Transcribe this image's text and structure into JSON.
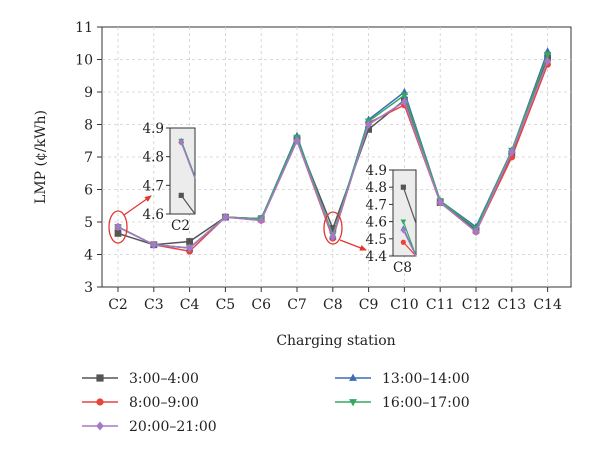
{
  "chart_data": {
    "type": "line",
    "xlabel": "Charging station",
    "ylabel": "LMP (¢/kWh)",
    "ylim": [
      3,
      11
    ],
    "yticks": [
      3,
      4,
      5,
      6,
      7,
      8,
      9,
      10,
      11
    ],
    "grid": true,
    "legend_position": "bottom",
    "categories": [
      "C2",
      "C3",
      "C4",
      "C5",
      "C6",
      "C7",
      "C8",
      "C9",
      "C10",
      "C11",
      "C12",
      "C13",
      "C14"
    ],
    "series": [
      {
        "name": "3:00–4:00",
        "color": "#555555",
        "marker": "square",
        "values": [
          4.65,
          4.3,
          4.4,
          5.15,
          5.1,
          7.55,
          4.8,
          7.85,
          8.75,
          5.6,
          4.75,
          7.1,
          10.05
        ]
      },
      {
        "name": "8:00–9:00",
        "color": "#e8443a",
        "marker": "circle",
        "values": [
          4.85,
          4.3,
          4.1,
          5.15,
          5.05,
          7.5,
          4.5,
          8.05,
          8.6,
          5.6,
          4.7,
          7.0,
          9.85
        ]
      },
      {
        "name": "13:00–14:00",
        "color": "#3d6cb5",
        "marker": "triangle-up",
        "values": [
          4.85,
          4.3,
          4.2,
          5.15,
          5.1,
          7.65,
          4.55,
          8.15,
          9.0,
          5.65,
          4.85,
          7.2,
          10.25
        ]
      },
      {
        "name": "16:00–17:00",
        "color": "#33a861",
        "marker": "triangle-down",
        "values": [
          4.85,
          4.3,
          4.2,
          5.15,
          5.1,
          7.6,
          4.6,
          8.1,
          8.9,
          5.65,
          4.8,
          7.2,
          10.15
        ]
      },
      {
        "name": "20:00–21:00",
        "color": "#a678c8",
        "marker": "diamond",
        "values": [
          4.85,
          4.3,
          4.2,
          5.15,
          5.05,
          7.5,
          4.55,
          8.0,
          8.7,
          5.6,
          4.7,
          7.15,
          9.95
        ]
      }
    ],
    "legend_order": [
      "3:00–4:00",
      "13:00–14:00",
      "8:00–9:00",
      "16:00–17:00",
      "20:00–21:00"
    ],
    "insets": [
      {
        "category": "C2",
        "label": "C2",
        "ylim": [
          4.6,
          4.9
        ],
        "yticks": [
          "4.6",
          "4.7",
          "4.8",
          "4.9"
        ],
        "values": {
          "3:00–4:00": 4.665,
          "8:00–9:00": 4.85,
          "13:00–14:00": 4.855,
          "16:00–17:00": 4.855,
          "20:00–21:00": 4.85
        }
      },
      {
        "category": "C8",
        "label": "C8",
        "ylim": [
          4.4,
          4.9
        ],
        "yticks": [
          "4.4",
          "4.5",
          "4.6",
          "4.7",
          "4.8",
          "4.9"
        ],
        "values": {
          "3:00–4:00": 4.8,
          "8:00–9:00": 4.48,
          "13:00–14:00": 4.56,
          "16:00–17:00": 4.6,
          "20:00–21:00": 4.55
        }
      }
    ]
  }
}
